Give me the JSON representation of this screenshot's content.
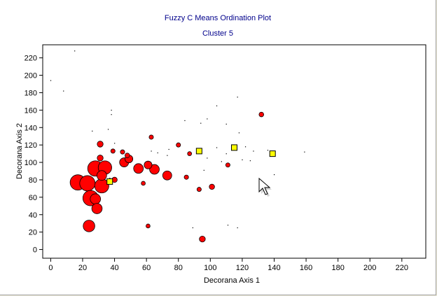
{
  "chart_data": {
    "type": "scatter",
    "title": "Fuzzy C Means Ordination Plot",
    "subtitle": "Cluster 5",
    "xlabel": "Decorana Axis 1",
    "ylabel": "Decorana Axis 2",
    "xlim": [
      -5,
      235
    ],
    "ylim": [
      -10,
      235
    ],
    "xticks": [
      0,
      20,
      40,
      60,
      80,
      100,
      120,
      140,
      160,
      180,
      200,
      220
    ],
    "yticks": [
      0,
      20,
      40,
      60,
      80,
      100,
      120,
      140,
      160,
      180,
      200,
      220
    ],
    "grid": false,
    "colors": {
      "member": "#ff0000",
      "centroid": "#ffff00",
      "stroke": "#000000",
      "title": "#00008b",
      "dot": "#000000"
    },
    "centroids": [
      {
        "x": 37,
        "y": 78
      },
      {
        "x": 93,
        "y": 113
      },
      {
        "x": 115,
        "y": 117
      },
      {
        "x": 139,
        "y": 110
      }
    ],
    "members": [
      {
        "x": 17,
        "y": 77,
        "size": 1.0
      },
      {
        "x": 23,
        "y": 76,
        "size": 1.0
      },
      {
        "x": 25,
        "y": 59,
        "size": 1.0
      },
      {
        "x": 28,
        "y": 93,
        "size": 1.0
      },
      {
        "x": 32,
        "y": 73,
        "size": 0.9
      },
      {
        "x": 34,
        "y": 94,
        "size": 0.85
      },
      {
        "x": 32,
        "y": 85,
        "size": 0.55
      },
      {
        "x": 28,
        "y": 58,
        "size": 0.6
      },
      {
        "x": 29,
        "y": 47,
        "size": 0.6
      },
      {
        "x": 24,
        "y": 27,
        "size": 0.7
      },
      {
        "x": 46,
        "y": 100,
        "size": 0.5
      },
      {
        "x": 49,
        "y": 104,
        "size": 0.4
      },
      {
        "x": 55,
        "y": 93,
        "size": 0.55
      },
      {
        "x": 65,
        "y": 92,
        "size": 0.55
      },
      {
        "x": 73,
        "y": 85,
        "size": 0.5
      },
      {
        "x": 61,
        "y": 97,
        "size": 0.4
      },
      {
        "x": 31,
        "y": 121,
        "size": 0.25
      },
      {
        "x": 31,
        "y": 105,
        "size": 0.25
      },
      {
        "x": 40,
        "y": 80,
        "size": 0.2
      },
      {
        "x": 48,
        "y": 108,
        "size": 0.15
      },
      {
        "x": 95,
        "y": 12,
        "size": 0.25
      },
      {
        "x": 101,
        "y": 72,
        "size": 0.2
      },
      {
        "x": 132,
        "y": 155,
        "size": 0.15
      },
      {
        "x": 63,
        "y": 129,
        "size": 0.12
      },
      {
        "x": 39,
        "y": 113,
        "size": 0.12
      },
      {
        "x": 45,
        "y": 112,
        "size": 0.12
      },
      {
        "x": 80,
        "y": 120,
        "size": 0.12
      },
      {
        "x": 87,
        "y": 110,
        "size": 0.1
      },
      {
        "x": 85,
        "y": 83,
        "size": 0.12
      },
      {
        "x": 93,
        "y": 69,
        "size": 0.12
      },
      {
        "x": 111,
        "y": 97,
        "size": 0.12
      },
      {
        "x": 58,
        "y": 76,
        "size": 0.1
      },
      {
        "x": 61,
        "y": 27,
        "size": 0.1
      }
    ],
    "dots": [
      {
        "x": 15,
        "y": 228
      },
      {
        "x": 0,
        "y": 194
      },
      {
        "x": 8,
        "y": 182
      },
      {
        "x": 38,
        "y": 160
      },
      {
        "x": 38,
        "y": 155
      },
      {
        "x": 36,
        "y": 138
      },
      {
        "x": 26,
        "y": 136
      },
      {
        "x": 40,
        "y": 122
      },
      {
        "x": 44,
        "y": 103
      },
      {
        "x": 63,
        "y": 113
      },
      {
        "x": 67,
        "y": 111
      },
      {
        "x": 73,
        "y": 108
      },
      {
        "x": 74,
        "y": 115
      },
      {
        "x": 84,
        "y": 148
      },
      {
        "x": 94,
        "y": 145
      },
      {
        "x": 98,
        "y": 150
      },
      {
        "x": 104,
        "y": 165
      },
      {
        "x": 110,
        "y": 144
      },
      {
        "x": 118,
        "y": 134
      },
      {
        "x": 117,
        "y": 175
      },
      {
        "x": 104,
        "y": 117
      },
      {
        "x": 98,
        "y": 105
      },
      {
        "x": 107,
        "y": 101
      },
      {
        "x": 110,
        "y": 110
      },
      {
        "x": 120,
        "y": 103
      },
      {
        "x": 125,
        "y": 102
      },
      {
        "x": 127,
        "y": 113
      },
      {
        "x": 136,
        "y": 114
      },
      {
        "x": 140,
        "y": 86
      },
      {
        "x": 159,
        "y": 112
      },
      {
        "x": 96,
        "y": 91
      },
      {
        "x": 89,
        "y": 25
      },
      {
        "x": 111,
        "y": 28
      },
      {
        "x": 117,
        "y": 25
      },
      {
        "x": 122,
        "y": 118
      },
      {
        "x": 37,
        "y": 82
      }
    ]
  }
}
